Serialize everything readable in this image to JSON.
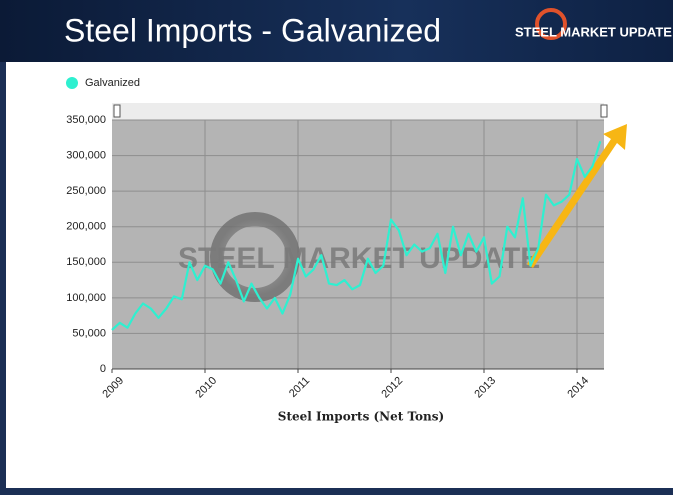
{
  "header": {
    "title": "Steel Imports - Galvanized",
    "logo": "STEEL MARKET UPDATE"
  },
  "chart_data": {
    "type": "line",
    "xlabel": "Steel Imports (Net Tons)",
    "watermark": "STEEL MARKET UPDATE",
    "categories": [
      "2009",
      null,
      null,
      null,
      null,
      null,
      null,
      null,
      null,
      null,
      null,
      null,
      "2010",
      null,
      null,
      null,
      null,
      null,
      null,
      null,
      null,
      null,
      null,
      null,
      "2011",
      null,
      null,
      null,
      null,
      null,
      null,
      null,
      null,
      null,
      null,
      null,
      "2012",
      null,
      null,
      null,
      null,
      null,
      null,
      null,
      null,
      null,
      null,
      null,
      "2013",
      null,
      null,
      null,
      null,
      null,
      null,
      null,
      null,
      null,
      null,
      null,
      "2014",
      null,
      null,
      null
    ],
    "series": [
      {
        "name": "Galvanized",
        "color": "#2ef0d0",
        "values": [
          55000,
          65000,
          58000,
          78000,
          92000,
          85000,
          72000,
          85000,
          102000,
          98000,
          150000,
          125000,
          145000,
          140000,
          120000,
          150000,
          125000,
          95000,
          120000,
          100000,
          85000,
          100000,
          78000,
          105000,
          155000,
          130000,
          140000,
          160000,
          120000,
          118000,
          125000,
          112000,
          118000,
          155000,
          135000,
          145000,
          210000,
          195000,
          160000,
          175000,
          165000,
          170000,
          190000,
          135000,
          200000,
          160000,
          190000,
          165000,
          185000,
          120000,
          130000,
          200000,
          185000,
          240000,
          145000,
          170000,
          245000,
          230000,
          235000,
          245000,
          295000,
          270000,
          285000,
          320000
        ]
      }
    ],
    "ylim": [
      0,
      350000
    ],
    "yticks": [
      0,
      {
        "value": 50000,
        "label": "50,000"
      },
      {
        "value": 100000,
        "label": "100,000"
      },
      {
        "value": 150000,
        "label": "150,000"
      },
      {
        "value": 200000,
        "label": "200,000"
      },
      {
        "value": 250000,
        "label": "250,000"
      },
      {
        "value": 300000,
        "label": "300,000"
      },
      {
        "value": 350000,
        "label": "350,000"
      }
    ],
    "grid": true,
    "legend": "top-left"
  }
}
